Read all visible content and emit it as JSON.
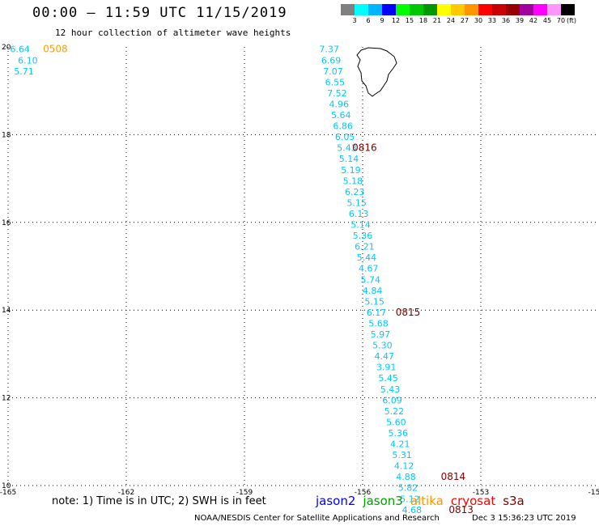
{
  "header": {
    "title": "00:00 – 11:59 UTC 11/15/2019",
    "subtitle": "12 hour collection of altimeter wave heights"
  },
  "legend": {
    "colors": [
      "#808080",
      "#00ffff",
      "#00b4ff",
      "#0000ff",
      "#00ff00",
      "#00c800",
      "#009600",
      "#ffff00",
      "#ffc800",
      "#ff9600",
      "#ff0000",
      "#c80000",
      "#960000",
      "#a0009e",
      "#ff00ff",
      "#ff96ff",
      "#000000"
    ],
    "labels": [
      "3",
      "6",
      "9",
      "12",
      "15",
      "18",
      "21",
      "24",
      "27",
      "30",
      "33",
      "36",
      "39",
      "42",
      "45",
      "70",
      "(ft)"
    ]
  },
  "map": {
    "lon_min": -165,
    "lon_max": -150,
    "lat_min": 10,
    "lat_max": 20,
    "x_ticks": [
      "-165",
      "-162",
      "-159",
      "-156",
      "-153",
      "-15"
    ],
    "y_ticks": [
      "20",
      "18",
      "16",
      "14",
      "12",
      "10"
    ],
    "land": "Hawaii (Big Island) coastline"
  },
  "swh_points": [
    {
      "lon": -164.7,
      "lat": 19.95,
      "v": "6.64"
    },
    {
      "lon": -164.5,
      "lat": 19.7,
      "v": "6.10"
    },
    {
      "lon": -164.6,
      "lat": 19.45,
      "v": "5.71"
    },
    {
      "lon": -156.85,
      "lat": 19.95,
      "v": "7.37"
    },
    {
      "lon": -156.8,
      "lat": 19.7,
      "v": "6.69"
    },
    {
      "lon": -156.75,
      "lat": 19.45,
      "v": "7.07"
    },
    {
      "lon": -156.7,
      "lat": 19.2,
      "v": "6.55"
    },
    {
      "lon": -156.65,
      "lat": 18.95,
      "v": "7.52"
    },
    {
      "lon": -156.6,
      "lat": 18.7,
      "v": "4.96"
    },
    {
      "lon": -156.55,
      "lat": 18.45,
      "v": "5.64"
    },
    {
      "lon": -156.5,
      "lat": 18.2,
      "v": "6.86"
    },
    {
      "lon": -156.45,
      "lat": 17.95,
      "v": "6.05"
    },
    {
      "lon": -156.4,
      "lat": 17.7,
      "v": "5.43"
    },
    {
      "lon": -156.35,
      "lat": 17.45,
      "v": "5.14"
    },
    {
      "lon": -156.3,
      "lat": 17.2,
      "v": "5.19"
    },
    {
      "lon": -156.25,
      "lat": 16.95,
      "v": "5.18"
    },
    {
      "lon": -156.2,
      "lat": 16.7,
      "v": "6.23"
    },
    {
      "lon": -156.15,
      "lat": 16.45,
      "v": "5.15"
    },
    {
      "lon": -156.1,
      "lat": 16.2,
      "v": "6.13"
    },
    {
      "lon": -156.05,
      "lat": 15.95,
      "v": "5.14"
    },
    {
      "lon": -156.0,
      "lat": 15.7,
      "v": "5.36"
    },
    {
      "lon": -155.95,
      "lat": 15.45,
      "v": "6.21"
    },
    {
      "lon": -155.9,
      "lat": 15.2,
      "v": "5.44"
    },
    {
      "lon": -155.85,
      "lat": 14.95,
      "v": "4.67"
    },
    {
      "lon": -155.8,
      "lat": 14.7,
      "v": "5.74"
    },
    {
      "lon": -155.75,
      "lat": 14.45,
      "v": "4.84"
    },
    {
      "lon": -155.7,
      "lat": 14.2,
      "v": "5.15"
    },
    {
      "lon": -155.65,
      "lat": 13.95,
      "v": "6.17"
    },
    {
      "lon": -155.6,
      "lat": 13.7,
      "v": "5.68"
    },
    {
      "lon": -155.55,
      "lat": 13.45,
      "v": "5.97"
    },
    {
      "lon": -155.5,
      "lat": 13.2,
      "v": "5.30"
    },
    {
      "lon": -155.45,
      "lat": 12.95,
      "v": "4.47"
    },
    {
      "lon": -155.4,
      "lat": 12.7,
      "v": "3.91"
    },
    {
      "lon": -155.35,
      "lat": 12.45,
      "v": "5.45"
    },
    {
      "lon": -155.3,
      "lat": 12.2,
      "v": "5.43"
    },
    {
      "lon": -155.25,
      "lat": 11.95,
      "v": "6.09"
    },
    {
      "lon": -155.2,
      "lat": 11.7,
      "v": "5.22"
    },
    {
      "lon": -155.15,
      "lat": 11.45,
      "v": "5.60"
    },
    {
      "lon": -155.1,
      "lat": 11.2,
      "v": "5.36"
    },
    {
      "lon": -155.05,
      "lat": 10.95,
      "v": "4.21"
    },
    {
      "lon": -155.0,
      "lat": 10.7,
      "v": "5.31"
    },
    {
      "lon": -154.95,
      "lat": 10.45,
      "v": "4.12"
    },
    {
      "lon": -154.9,
      "lat": 10.2,
      "v": "4.88"
    },
    {
      "lon": -154.85,
      "lat": 9.95,
      "v": "5.82"
    },
    {
      "lon": -154.8,
      "lat": 9.7,
      "v": "5.12"
    },
    {
      "lon": -154.75,
      "lat": 9.45,
      "v": "4.68"
    }
  ],
  "pass_labels": [
    {
      "lon": -163.8,
      "lat": 19.95,
      "text": "0508",
      "color": "#ffa000"
    },
    {
      "lon": -155.95,
      "lat": 17.7,
      "text": "0816",
      "color": "#800000"
    },
    {
      "lon": -154.85,
      "lat": 13.95,
      "text": "0815",
      "color": "#800000"
    },
    {
      "lon": -153.7,
      "lat": 10.2,
      "text": "0814",
      "color": "#800000"
    },
    {
      "lon": -153.5,
      "lat": 9.45,
      "text": "0813",
      "color": "#800000"
    }
  ],
  "note": "note:  1) Time is in UTC;  2) SWH is in feet",
  "satellites": [
    {
      "name": "jason2",
      "color": "#0000ff"
    },
    {
      "name": "jason3",
      "color": "#00a000"
    },
    {
      "name": "altika",
      "color": "#ff9600"
    },
    {
      "name": "cryosat",
      "color": "#ff0000"
    },
    {
      "name": "s3a",
      "color": "#800000"
    }
  ],
  "credits": {
    "org": "NOAA/NESDIS Center for Satellite Applications and Research",
    "stamp": "Dec  3 15:36:23 UTC 2019"
  },
  "colors": {
    "swh_text": "#00c8ff",
    "grid": "#000000"
  }
}
